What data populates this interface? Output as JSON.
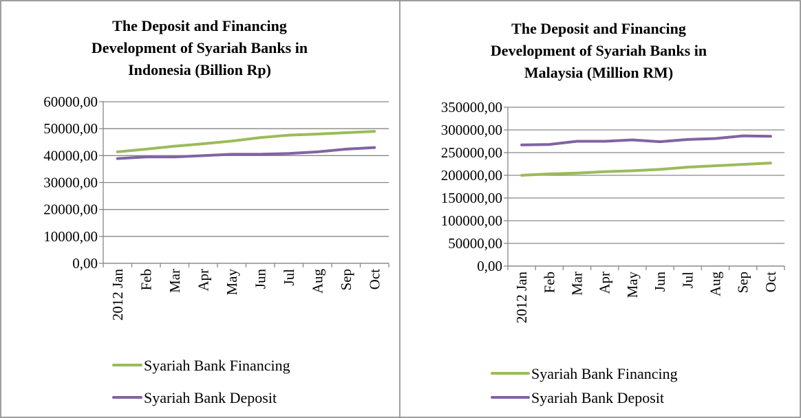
{
  "chart_data": [
    {
      "type": "line",
      "title": [
        "The Deposit and Financing",
        "Development of Syariah Banks in",
        "Indonesia (Billion Rp)"
      ],
      "categories": [
        "2012 Jan",
        "Feb",
        "Mar",
        "Apr",
        "May",
        "Jun",
        "Jul",
        "Aug",
        "Sep",
        "Oct"
      ],
      "series": [
        {
          "name": "Syariah Bank Financing",
          "color": "#9bbb59",
          "values": [
            41400,
            42400,
            43500,
            44400,
            45400,
            46700,
            47600,
            48000,
            48500,
            49000
          ]
        },
        {
          "name": "Syariah Bank Deposit",
          "color": "#8064a2",
          "values": [
            38900,
            39500,
            39500,
            40000,
            40500,
            40500,
            40800,
            41400,
            42400,
            43000
          ]
        }
      ],
      "ylim": [
        0,
        60000
      ],
      "yticks": [
        {
          "value": 0,
          "label": "0,00"
        },
        {
          "value": 10000,
          "label": "10000,00"
        },
        {
          "value": 20000,
          "label": "20000,00"
        },
        {
          "value": 30000,
          "label": "30000,00"
        },
        {
          "value": 40000,
          "label": "40000,00"
        },
        {
          "value": 50000,
          "label": "50000,00"
        },
        {
          "value": 60000,
          "label": "60000,00"
        }
      ],
      "grid": true,
      "legend": "bottom"
    },
    {
      "type": "line",
      "title": [
        "The Deposit and Financing",
        "Development of Syariah Banks in",
        "Malaysia (Million RM)"
      ],
      "categories": [
        "2012 Jan",
        "Feb",
        "Mar",
        "Apr",
        "May",
        "Jun",
        "Jul",
        "Aug",
        "Sep",
        "Oct"
      ],
      "series": [
        {
          "name": "Syariah Bank Financing",
          "color": "#9bbb59",
          "values": [
            200000,
            203000,
            205000,
            208000,
            210000,
            213000,
            218000,
            221000,
            224000,
            227000
          ]
        },
        {
          "name": "Syariah Bank Deposit",
          "color": "#8064a2",
          "values": [
            267000,
            268000,
            275000,
            275000,
            278000,
            274000,
            279000,
            281000,
            287000,
            286000
          ]
        }
      ],
      "ylim": [
        0,
        350000
      ],
      "yticks": [
        {
          "value": 0,
          "label": "0,00"
        },
        {
          "value": 50000,
          "label": "50000,00"
        },
        {
          "value": 100000,
          "label": "100000,00"
        },
        {
          "value": 150000,
          "label": "150000,00"
        },
        {
          "value": 200000,
          "label": "200000,00"
        },
        {
          "value": 250000,
          "label": "250000,00"
        },
        {
          "value": 300000,
          "label": "300000,00"
        },
        {
          "value": 350000,
          "label": "350000,00"
        }
      ],
      "grid": true,
      "legend": "bottom"
    }
  ]
}
